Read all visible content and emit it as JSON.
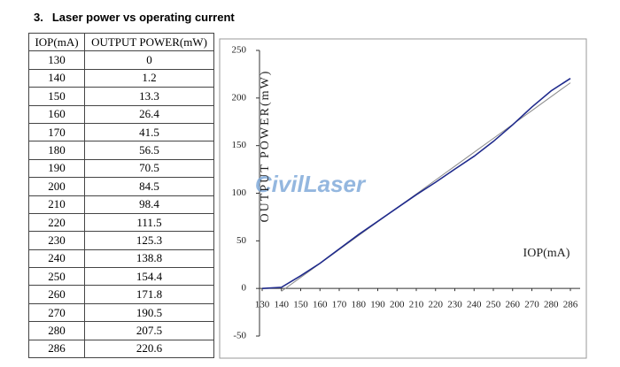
{
  "heading": {
    "number": "3.",
    "title": "Laser power vs operating current"
  },
  "table": {
    "header": [
      "IOP(mA)",
      "OUTPUT POWER(mW)"
    ],
    "rows": [
      [
        "130",
        "0"
      ],
      [
        "140",
        "1.2"
      ],
      [
        "150",
        "13.3"
      ],
      [
        "160",
        "26.4"
      ],
      [
        "170",
        "41.5"
      ],
      [
        "180",
        "56.5"
      ],
      [
        "190",
        "70.5"
      ],
      [
        "200",
        "84.5"
      ],
      [
        "210",
        "98.4"
      ],
      [
        "220",
        "111.5"
      ],
      [
        "230",
        "125.3"
      ],
      [
        "240",
        "138.8"
      ],
      [
        "250",
        "154.4"
      ],
      [
        "260",
        "171.8"
      ],
      [
        "270",
        "190.5"
      ],
      [
        "280",
        "207.5"
      ],
      [
        "286",
        "220.6"
      ]
    ]
  },
  "chart_data": {
    "type": "line",
    "y_label": "OUTPUT POWER(mW)",
    "x_label": "IOP(mA)",
    "watermark": "CivilLaser",
    "categories": [
      "130",
      "140",
      "150",
      "160",
      "170",
      "180",
      "190",
      "200",
      "210",
      "220",
      "230",
      "240",
      "250",
      "260",
      "270",
      "280",
      "286"
    ],
    "series": [
      {
        "color": "#1f2a8c",
        "values": [
          0,
          1.2,
          13.3,
          26.4,
          41.5,
          56.5,
          70.5,
          84.5,
          98.4,
          111.5,
          125.3,
          138.8,
          154.4,
          171.8,
          190.5,
          207.5,
          220.6
        ]
      },
      {
        "color": "#8a8a8a",
        "values": [
          null,
          -3,
          11.6,
          26.2,
          40.8,
          55.4,
          70,
          84.6,
          99.2,
          113.8,
          128.4,
          143,
          157.6,
          172.2,
          186.8,
          201.4,
          216
        ]
      }
    ],
    "ylim": [
      -50,
      250
    ],
    "yticks": [
      -50,
      0,
      50,
      100,
      150,
      200,
      250
    ]
  }
}
